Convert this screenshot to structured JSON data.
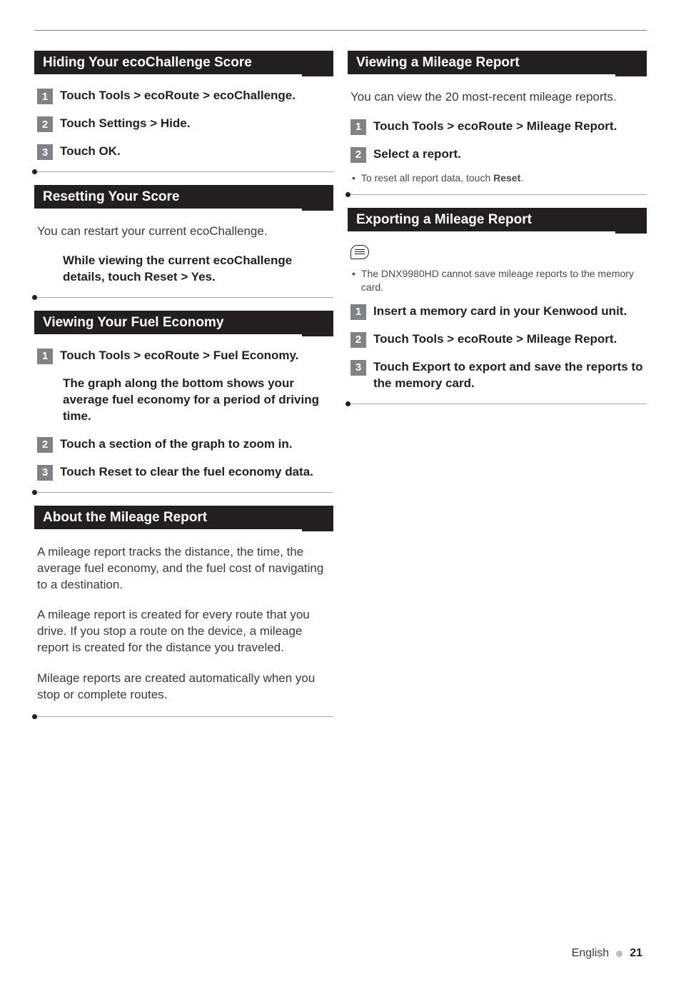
{
  "left": {
    "hiding": {
      "title": "Hiding Your ecoChallenge Score",
      "steps": [
        "Touch Tools > ecoRoute > ecoChallenge.",
        "Touch Settings > Hide.",
        "Touch OK."
      ]
    },
    "resetting": {
      "title": "Resetting Your Score",
      "body": "You can restart your current ecoChallenge.",
      "step": "While viewing the current ecoChallenge details, touch Reset > Yes."
    },
    "fuelEconomy": {
      "title": "Viewing Your Fuel Economy",
      "step1": "Touch Tools > ecoRoute > Fuel Economy.",
      "desc": "The graph along the bottom shows your average fuel economy for a period of driving time.",
      "step2": "Touch a section of the graph to zoom in.",
      "step3": "Touch Reset to clear the fuel economy data."
    },
    "aboutMileage": {
      "title": "About the Mileage Report",
      "p1": "A mileage report tracks the distance, the time, the average fuel economy, and the fuel cost of navigating to a destination.",
      "p2": "A mileage report is created for every route that you drive. If you stop a route on the device, a mileage report is created for the distance you traveled.",
      "p3": "Mileage reports are created automatically when you stop or complete routes."
    }
  },
  "right": {
    "viewing": {
      "title": "Viewing a Mileage Report",
      "body": "You can view the 20 most-recent mileage reports.",
      "step1": "Touch Tools > ecoRoute > Mileage Report.",
      "step2": "Select a report.",
      "note_prefix": "To reset all report data, touch ",
      "note_bold": "Reset",
      "note_suffix": "."
    },
    "exporting": {
      "title": "Exporting a Mileage Report",
      "note": "The DNX9980HD cannot save mileage reports to the memory card.",
      "step1": "Insert a memory card in your Kenwood unit.",
      "step2": "Touch Tools > ecoRoute > Mileage Report.",
      "step3": "Touch Export to export and save the reports to the memory card."
    }
  },
  "footer": {
    "lang": "English",
    "page": "21"
  }
}
